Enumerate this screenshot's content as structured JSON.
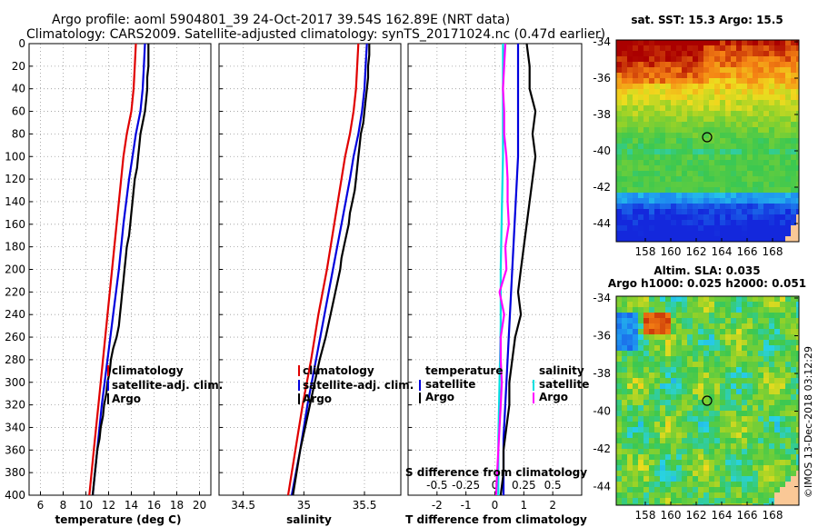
{
  "title": {
    "line1": "Argo profile: aoml 5904801_39 24-Oct-2017 39.54S 162.89E (NRT data)",
    "line2": "Climatology: CARS2009. Satellite-adjusted climatology: synTS_20171024.nc (0.47d earlier)"
  },
  "colors": {
    "climatology": "#e00000",
    "satellite": "#0000dd",
    "argo": "#000000",
    "sal_satellite": "#00e0e0",
    "sal_argo": "#ff00ff"
  },
  "chart_data": [
    {
      "id": "temperature",
      "type": "line",
      "xlabel": "temperature (deg C)",
      "xlim": [
        5,
        21
      ],
      "xticks": [
        6,
        8,
        10,
        12,
        14,
        16,
        18,
        20
      ],
      "ylim": [
        0,
        400
      ],
      "yticks": [
        0,
        20,
        40,
        60,
        80,
        100,
        120,
        140,
        160,
        180,
        200,
        220,
        240,
        260,
        280,
        300,
        320,
        340,
        360,
        380,
        400
      ],
      "legend": [
        "climatology",
        "satellite-adj. clim.",
        "Argo"
      ],
      "series": [
        {
          "name": "climatology",
          "depth": [
            0,
            20,
            40,
            60,
            80,
            100,
            120,
            160,
            200,
            240,
            280,
            320,
            360,
            400
          ],
          "values": [
            14.4,
            14.3,
            14.2,
            14.0,
            13.6,
            13.3,
            13.1,
            12.7,
            12.3,
            11.9,
            11.5,
            11.1,
            10.7,
            10.3
          ]
        },
        {
          "name": "satellite-adj. clim.",
          "depth": [
            0,
            20,
            40,
            60,
            80,
            100,
            120,
            160,
            200,
            240,
            280,
            320,
            360,
            400
          ],
          "values": [
            15.2,
            15.1,
            15.0,
            14.8,
            14.4,
            14.1,
            13.8,
            13.3,
            12.9,
            12.4,
            11.9,
            11.4,
            11.0,
            10.6
          ]
        },
        {
          "name": "Argo",
          "depth": [
            0,
            10,
            20,
            30,
            40,
            50,
            60,
            70,
            80,
            90,
            100,
            110,
            120,
            130,
            140,
            150,
            160,
            170,
            180,
            190,
            200,
            210,
            220,
            230,
            240,
            250,
            260,
            270,
            280,
            290,
            300,
            310,
            320,
            330,
            340,
            350,
            360,
            370,
            380,
            390,
            400
          ],
          "values": [
            15.5,
            15.5,
            15.5,
            15.4,
            15.4,
            15.3,
            15.2,
            15.0,
            14.8,
            14.7,
            14.6,
            14.5,
            14.3,
            14.2,
            14.1,
            14.0,
            13.9,
            13.8,
            13.6,
            13.5,
            13.4,
            13.3,
            13.2,
            13.1,
            13.0,
            12.9,
            12.7,
            12.4,
            12.2,
            12.1,
            11.9,
            11.8,
            11.6,
            11.5,
            11.3,
            11.2,
            11.0,
            10.9,
            10.8,
            10.7,
            10.6
          ]
        }
      ]
    },
    {
      "id": "salinity",
      "type": "line",
      "xlabel": "salinity",
      "xlim": [
        34.3,
        35.8
      ],
      "xticks": [
        34.5,
        35,
        35.5
      ],
      "xticklabels": [
        "34.5",
        "35",
        "35.5"
      ],
      "ylim": [
        0,
        400
      ],
      "legend": [
        "climatology",
        "satellite-adj. clim.",
        "Argo"
      ],
      "series": [
        {
          "name": "climatology",
          "depth": [
            0,
            20,
            40,
            60,
            80,
            100,
            120,
            160,
            200,
            240,
            280,
            320,
            360,
            400
          ],
          "values": [
            35.45,
            35.44,
            35.43,
            35.41,
            35.38,
            35.34,
            35.31,
            35.25,
            35.19,
            35.12,
            35.06,
            34.99,
            34.93,
            34.87
          ]
        },
        {
          "name": "satellite-adj. clim.",
          "depth": [
            0,
            20,
            40,
            60,
            80,
            100,
            120,
            160,
            200,
            240,
            280,
            320,
            360,
            400
          ],
          "values": [
            35.52,
            35.51,
            35.5,
            35.48,
            35.45,
            35.41,
            35.38,
            35.31,
            35.24,
            35.17,
            35.1,
            35.03,
            34.97,
            34.9
          ]
        },
        {
          "name": "Argo",
          "depth": [
            0,
            10,
            20,
            30,
            40,
            50,
            60,
            70,
            80,
            90,
            100,
            110,
            120,
            130,
            140,
            150,
            160,
            170,
            180,
            190,
            200,
            220,
            240,
            260,
            280,
            300,
            320,
            340,
            360,
            380,
            400
          ],
          "values": [
            35.54,
            35.54,
            35.53,
            35.53,
            35.52,
            35.51,
            35.5,
            35.49,
            35.47,
            35.46,
            35.45,
            35.44,
            35.43,
            35.42,
            35.4,
            35.38,
            35.37,
            35.35,
            35.33,
            35.31,
            35.3,
            35.26,
            35.22,
            35.18,
            35.13,
            35.09,
            35.05,
            35.01,
            34.97,
            34.94,
            34.91
          ]
        }
      ]
    },
    {
      "id": "differences",
      "type": "line",
      "xlabel": "T difference from climatology",
      "xlabel_top": "S difference from climatology",
      "xlim": [
        -3,
        3
      ],
      "xticks": [
        -2,
        -1,
        0,
        1,
        2
      ],
      "xticklabels": [
        "-2",
        "-1",
        "0",
        "1",
        "2"
      ],
      "sticklabels": [
        "-0.5",
        "-0.25",
        "0",
        "0.25",
        "0.5"
      ],
      "ylim": [
        0,
        400
      ],
      "legend_temperature": {
        "heading": "temperature",
        "items": [
          "satellite",
          "Argo"
        ]
      },
      "legend_salinity": {
        "heading": "salinity",
        "items": [
          "satellite",
          "Argo"
        ]
      },
      "series": [
        {
          "name": "temperature satellite",
          "depth": [
            0,
            50,
            100,
            150,
            200,
            250,
            300,
            350,
            400
          ],
          "values": [
            0.8,
            0.8,
            0.8,
            0.7,
            0.6,
            0.5,
            0.4,
            0.3,
            0.3
          ]
        },
        {
          "name": "temperature Argo",
          "depth": [
            0,
            20,
            40,
            60,
            80,
            100,
            120,
            140,
            160,
            180,
            200,
            220,
            240,
            260,
            280,
            300,
            320,
            340,
            360,
            380,
            400
          ],
          "values": [
            1.1,
            1.2,
            1.2,
            1.4,
            1.3,
            1.4,
            1.3,
            1.2,
            1.1,
            1.0,
            0.9,
            0.8,
            0.9,
            0.7,
            0.6,
            0.5,
            0.5,
            0.4,
            0.3,
            0.3,
            0.2
          ]
        },
        {
          "name": "salinity satellite",
          "depth": [
            0,
            50,
            100,
            150,
            200,
            250,
            300,
            350,
            400
          ],
          "values": [
            0.07,
            0.07,
            0.07,
            0.06,
            0.05,
            0.05,
            0.04,
            0.03,
            0.03
          ]
        },
        {
          "name": "salinity Argo",
          "depth": [
            0,
            20,
            40,
            60,
            80,
            100,
            120,
            140,
            160,
            180,
            200,
            220,
            240,
            260,
            280,
            300,
            320,
            340,
            360,
            380,
            400
          ],
          "values": [
            0.09,
            0.08,
            0.07,
            0.08,
            0.08,
            0.1,
            0.11,
            0.11,
            0.12,
            0.09,
            0.1,
            0.04,
            0.08,
            0.05,
            0.05,
            0.06,
            0.05,
            0.04,
            0.03,
            0.02,
            0.01
          ]
        }
      ]
    }
  ],
  "maps": {
    "sst": {
      "title": "sat. SST: 15.3 Argo: 15.5",
      "xticks": [
        "158",
        "160",
        "162",
        "164",
        "166",
        "168"
      ],
      "yticks": [
        "-34",
        "-36",
        "-38",
        "-40",
        "-42",
        "-44"
      ],
      "marker": {
        "lon": 162.89,
        "lat": -39.54
      }
    },
    "sla": {
      "title1": "Altim. SLA: 0.035",
      "title2": "Argo h1000: 0.025 h2000: 0.051",
      "xticks": [
        "158",
        "160",
        "162",
        "164",
        "166",
        "168"
      ],
      "yticks": [
        "-34",
        "-36",
        "-38",
        "-40",
        "-42",
        "-44"
      ],
      "marker": {
        "lon": 162.89,
        "lat": -39.54
      }
    }
  },
  "credit": "©IMOS 13-Dec-2018 03:12:29"
}
